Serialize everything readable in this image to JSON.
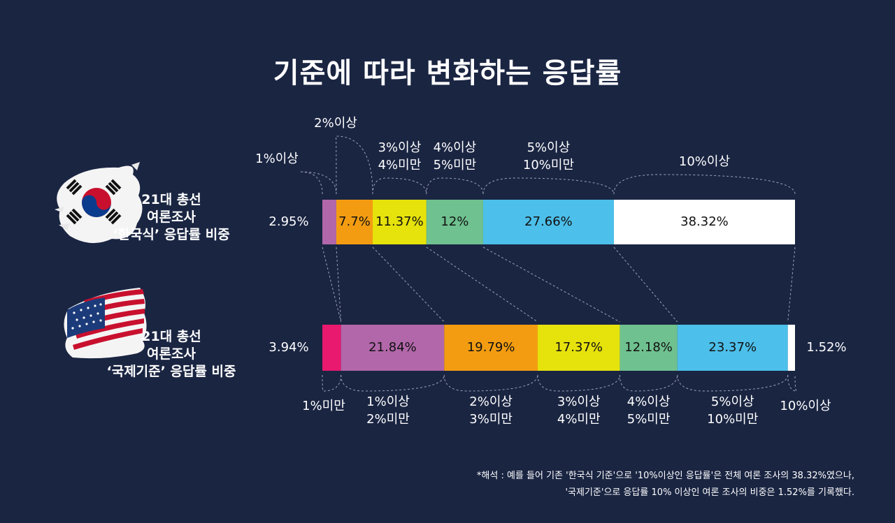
{
  "title": "기준에 따라 변화하는 응답률",
  "rows": [
    {
      "line1": "21대 총선",
      "line2": "여론조사",
      "line3": "‘한국식’ 응답률 비중"
    },
    {
      "line1": "21대 총선",
      "line2": "여론조사",
      "line3": "‘국제기준’ 응답률 비중"
    }
  ],
  "note": {
    "line1": "*해석 : 예를 들어 기존 '한국식 기준'으로 '10%이상인 응답률'은 전체 여론 조사의 38.32%였으나,",
    "line2": "'국제기준'으로 응답률 10% 이상인 여론 조사의 비중은 1.52%를 기록했다."
  },
  "colors": {
    "background": "#1a2542",
    "pink": "#e8196e",
    "purple": "#b267aa",
    "orange": "#f39c12",
    "yellow": "#e6e20c",
    "green": "#6fc18f",
    "blue": "#4cbfea",
    "white": "#ffffff"
  },
  "chart_data": {
    "type": "bar",
    "orientation": "horizontal-stacked-100",
    "xlim": [
      0,
      100
    ],
    "unit": "%",
    "series": [
      {
        "name": "‘한국식’ 응답률 비중",
        "values": [
          2.95,
          7.7,
          11.37,
          12,
          27.66,
          38.32
        ],
        "value_labels": [
          "2.95%",
          "7.7%",
          "11.37%",
          "12%",
          "27.66%",
          "38.32%"
        ],
        "colors": [
          "#b267aa",
          "#f39c12",
          "#e6e20c",
          "#6fc18f",
          "#4cbfea",
          "#ffffff"
        ],
        "categories": [
          [
            "1%이상"
          ],
          [
            "2%이상"
          ],
          [
            "3%이상",
            "4%미만"
          ],
          [
            "4%이상",
            "5%미만"
          ],
          [
            "5%이상",
            "10%미만"
          ],
          [
            "10%이상"
          ]
        ]
      },
      {
        "name": "‘국제기준’ 응답률 비중",
        "values": [
          3.94,
          21.84,
          19.79,
          17.37,
          12.18,
          23.37,
          1.52
        ],
        "value_labels": [
          "3.94%",
          "21.84%",
          "19.79%",
          "17.37%",
          "12.18%",
          "23.37%",
          "1.52%"
        ],
        "colors": [
          "#e8196e",
          "#b267aa",
          "#f39c12",
          "#e6e20c",
          "#6fc18f",
          "#4cbfea",
          "#ffffff"
        ],
        "categories": [
          [
            "1%미만"
          ],
          [
            "1%이상",
            "2%미만"
          ],
          [
            "2%이상",
            "3%미만"
          ],
          [
            "3%이상",
            "4%미만"
          ],
          [
            "4%이상",
            "5%미만"
          ],
          [
            "5%이상",
            "10%미만"
          ],
          [
            "10%이상"
          ]
        ]
      }
    ]
  }
}
